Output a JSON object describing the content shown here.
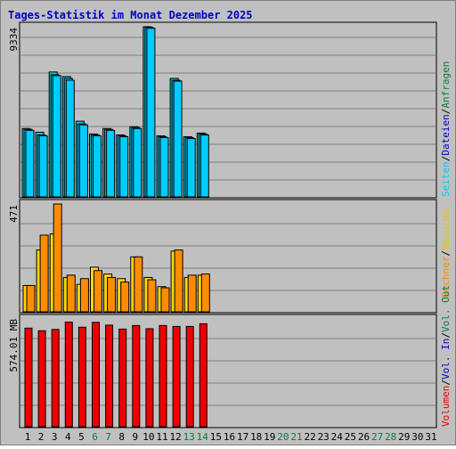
{
  "title": "Tages-Statistik im Monat Dezember 2025",
  "colors": {
    "title": "#0000cc",
    "background": "#c0c0c0",
    "grid": "#808080",
    "anfragen": "#00cccc",
    "dateien": "#00bfff",
    "seiten": "#00ccff",
    "besuche": "#ffd700",
    "rechner": "#ff8c00",
    "volumen": "#ee0000",
    "weekend_tick": "#008040",
    "weekday_tick": "#000000"
  },
  "legend": {
    "anfragen": "Anfragen",
    "dateien": "Dateien",
    "seiten": "Seiten",
    "besuche": "Besuche",
    "rechner": "Rechner",
    "out": "Out",
    "vol": "Vol.",
    "in": "In",
    "volumen": "Volumen",
    "separator": "/"
  },
  "chart_data": {
    "type": "bar",
    "title": "Tages-Statistik im Monat Dezember 2025",
    "days": [
      1,
      2,
      3,
      4,
      5,
      6,
      7,
      8,
      9,
      10,
      11,
      12,
      13,
      14,
      15,
      16,
      17,
      18,
      19,
      20,
      21,
      22,
      23,
      24,
      25,
      26,
      27,
      28,
      29,
      30,
      31
    ],
    "weekend_days": [
      6,
      7,
      13,
      14,
      20,
      21,
      27,
      28
    ],
    "panels": [
      {
        "name": "requests",
        "ymax_label": "9334",
        "ymax": 9334,
        "series": [
          {
            "name": "Anfragen",
            "values": [
              3750,
              3550,
              6850,
              6600,
              4150,
              3450,
              3750,
              3400,
              3850,
              9334,
              3350,
              6500,
              3300,
              3500,
              null,
              null,
              null,
              null,
              null,
              null,
              null,
              null,
              null,
              null,
              null,
              null,
              null,
              null,
              null,
              null,
              null
            ]
          },
          {
            "name": "Dateien",
            "values": [
              3700,
              3400,
              6700,
              6500,
              4000,
              3400,
              3700,
              3350,
              3800,
              9300,
              3300,
              6400,
              3250,
              3450,
              null,
              null,
              null,
              null,
              null,
              null,
              null,
              null,
              null,
              null,
              null,
              null,
              null,
              null,
              null,
              null,
              null
            ]
          },
          {
            "name": "Seiten",
            "values": [
              3650,
              3350,
              6650,
              6400,
              3950,
              3350,
              3650,
              3300,
              3750,
              9250,
              3250,
              6350,
              3200,
              3400,
              null,
              null,
              null,
              null,
              null,
              null,
              null,
              null,
              null,
              null,
              null,
              null,
              null,
              null,
              null,
              null,
              null
            ]
          }
        ]
      },
      {
        "name": "visits",
        "ymax_label": "471",
        "ymax": 471,
        "series": [
          {
            "name": "Besuche",
            "values": [
              115,
              270,
              340,
              150,
              120,
              195,
              165,
              145,
              240,
              150,
              110,
              265,
              150,
              160,
              null,
              null,
              null,
              null,
              null,
              null,
              null,
              null,
              null,
              null,
              null,
              null,
              null,
              null,
              null,
              null,
              null
            ]
          },
          {
            "name": "Rechner",
            "values": [
              115,
              335,
              471,
              160,
              145,
              180,
              150,
              130,
              240,
              140,
              105,
              270,
              160,
              165,
              null,
              null,
              null,
              null,
              null,
              null,
              null,
              null,
              null,
              null,
              null,
              null,
              null,
              null,
              null,
              null,
              null
            ]
          }
        ]
      },
      {
        "name": "volume",
        "ymax_label": "574.01 MB",
        "ymax": 574.01,
        "unit": "MB",
        "series": [
          {
            "name": "Volumen",
            "values": [
              525,
              511,
              518,
              557,
              530,
              556,
              541,
              520,
              539,
              522,
              539,
              534,
              534,
              548,
              null,
              null,
              null,
              null,
              null,
              null,
              null,
              null,
              null,
              null,
              null,
              null,
              null,
              null,
              null,
              null,
              null
            ]
          }
        ]
      }
    ]
  }
}
